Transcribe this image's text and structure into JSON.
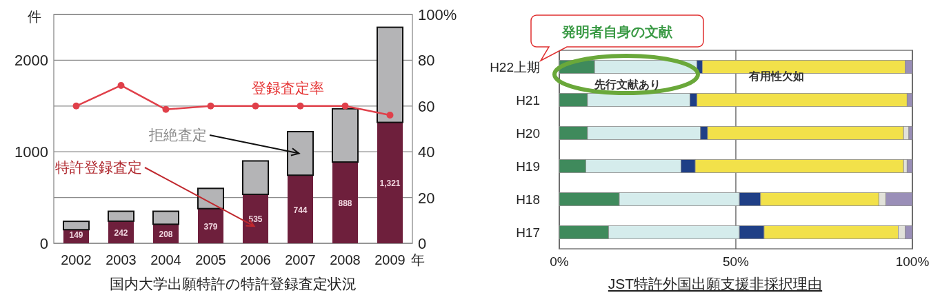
{
  "chart_data": [
    {
      "type": "bar",
      "title": "国内大学出願特許の特許登録査定状況",
      "xlabel": "年",
      "ylabel": "件",
      "stacked": true,
      "grid": "y",
      "categories": [
        "2002",
        "2003",
        "2004",
        "2005",
        "2006",
        "2007",
        "2008",
        "2009"
      ],
      "series": [
        {
          "name": "特許登録査定",
          "color": "#6e1f3c",
          "values": [
            149,
            242,
            208,
            379,
            535,
            744,
            888,
            1321
          ],
          "value_labels": [
            "149",
            "242",
            "208",
            "379",
            "535",
            "744",
            "888",
            "1,321"
          ]
        },
        {
          "name": "拒絶査定",
          "color": "#b4b4b6",
          "values": [
            91,
            108,
            142,
            221,
            365,
            476,
            582,
            1039
          ]
        },
        {
          "name": "登録査定率",
          "type": "line",
          "axis": "y2",
          "marker": "circle",
          "color": "#e0404a",
          "values": [
            60,
            69,
            58.5,
            60,
            60,
            60,
            60,
            56
          ]
        }
      ],
      "ylim": [
        0,
        2500
      ],
      "yticks": [
        0,
        {
          "value": 500,
          "label": null
        },
        1000,
        {
          "value": 1500,
          "label": null
        },
        2000,
        {
          "value": 2500,
          "label": null
        }
      ],
      "y2lim": [
        0,
        100
      ],
      "y2ticks": [
        0,
        20,
        40,
        60,
        80,
        {
          "value": 100,
          "label": "100%"
        }
      ]
    },
    {
      "type": "bar",
      "title": "JST特許外国出願支援非採択理由",
      "orientation": "horizontal",
      "stacked": true,
      "grid": "x",
      "categories": [
        "H22上期",
        "H21",
        "H20",
        "H19",
        "H18",
        "H17"
      ],
      "series": [
        {
          "name": "発明者自身の文献",
          "color": "#3f8a5c",
          "values": [
            10,
            8,
            8,
            7.5,
            17,
            14
          ]
        },
        {
          "name": "先行文献あり",
          "color": "#d5ecec",
          "values": [
            29,
            29,
            32,
            27,
            34,
            37
          ]
        },
        {
          "color": "#1f3f86",
          "values": [
            1.5,
            2,
            2,
            4,
            6,
            7
          ]
        },
        {
          "name": "有用性欠如",
          "color": "#f2e14a",
          "values": [
            57.5,
            59.5,
            55.5,
            59,
            33.5,
            38
          ]
        },
        {
          "color": "#e2e2da",
          "values": [
            0,
            0,
            1.5,
            1,
            2,
            2
          ]
        },
        {
          "color": "#9a8fb8",
          "values": [
            2,
            1.5,
            1,
            1.5,
            7.5,
            2
          ]
        }
      ],
      "xlim": [
        0,
        100
      ],
      "xticks": [
        {
          "value": 0,
          "label": "0%"
        },
        {
          "value": 50,
          "label": "50%"
        },
        {
          "value": 100,
          "label": "100%"
        }
      ]
    }
  ]
}
